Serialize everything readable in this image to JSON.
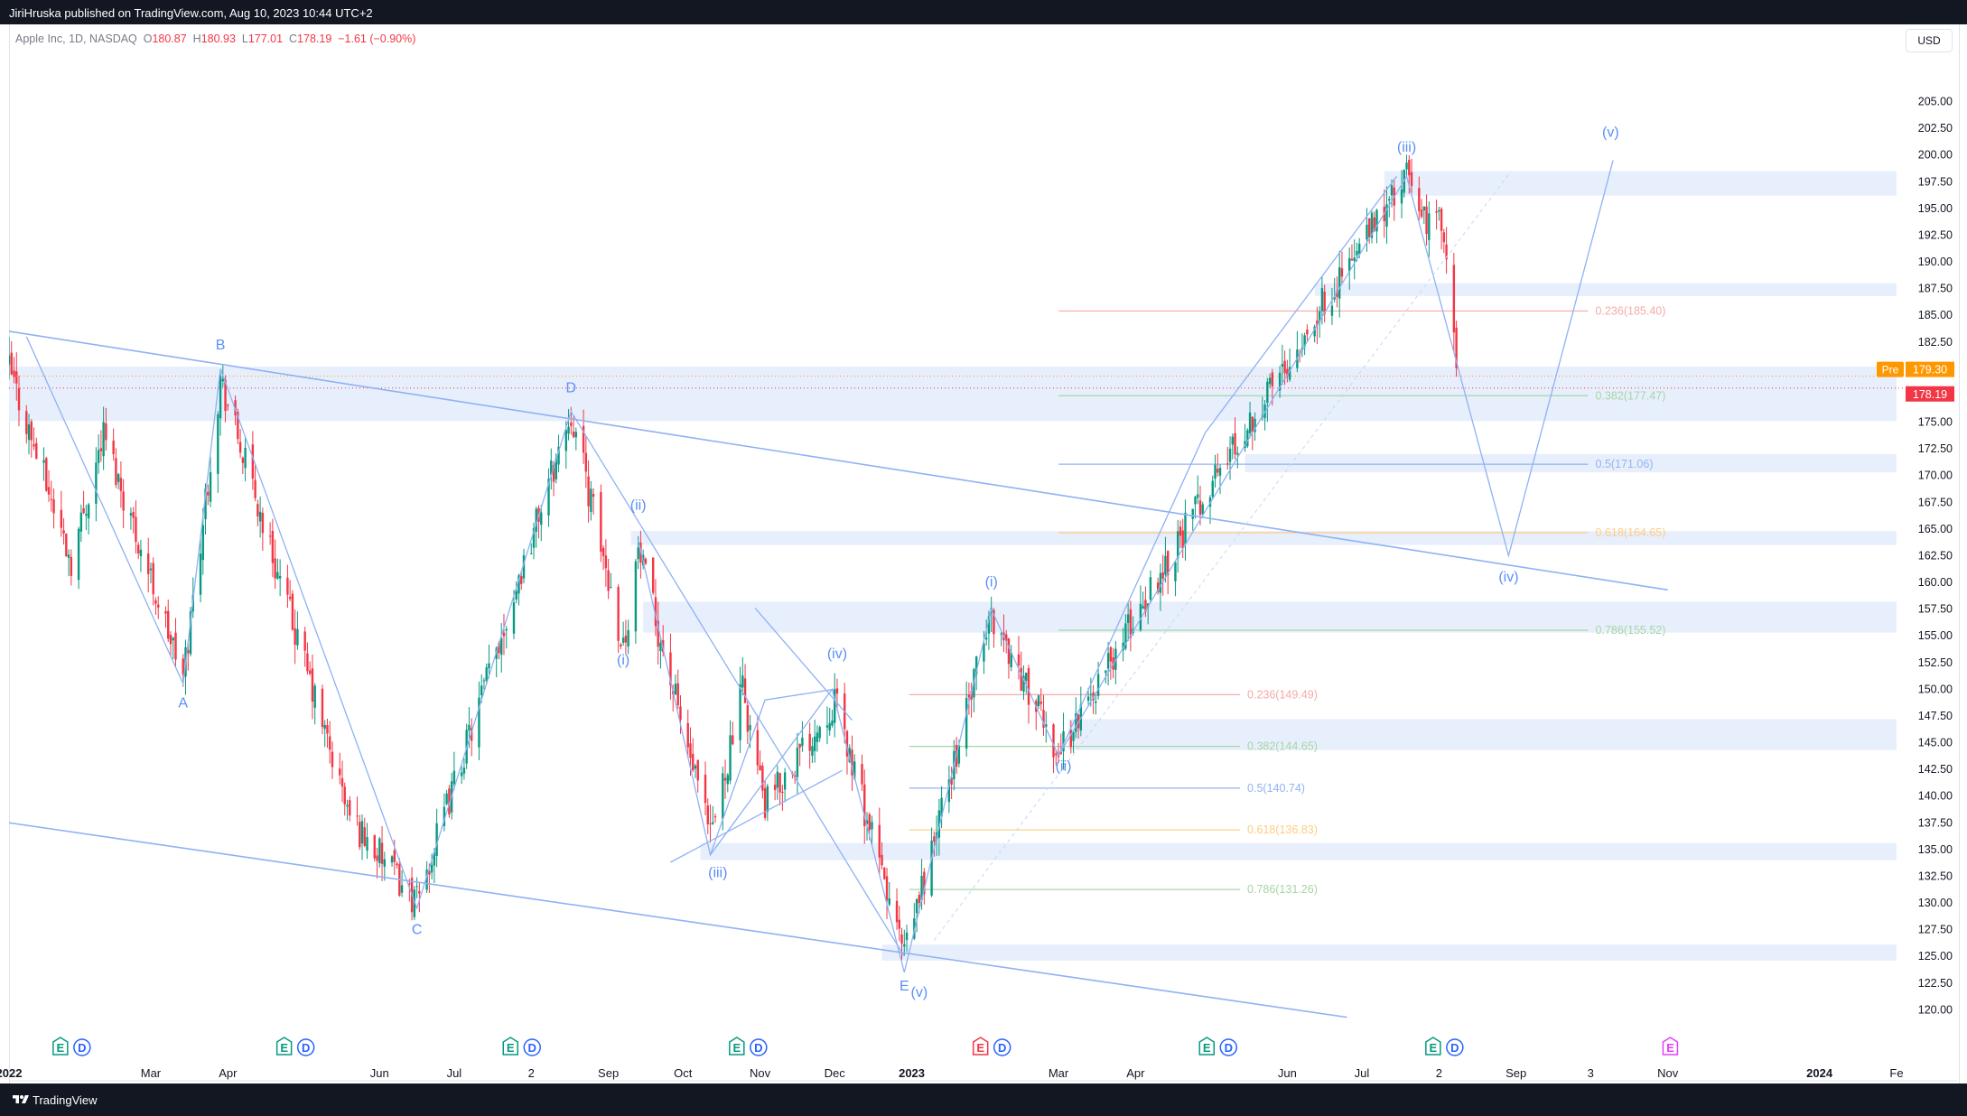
{
  "header": {
    "published": "JiriHruska published on TradingView.com, Aug 10, 2023 10:44 UTC+2"
  },
  "legend": {
    "symbol": "Apple Inc, 1D, NASDAQ",
    "open_label": "O",
    "open": "180.87",
    "high_label": "H",
    "high": "180.93",
    "low_label": "L",
    "low": "177.01",
    "close_label": "C",
    "close": "178.19",
    "change": "−1.61 (−0.90%)"
  },
  "currency_button": "USD",
  "footer": {
    "brand": "TradingView"
  },
  "colors": {
    "up": "#089981",
    "down": "#f23645",
    "wave": "#5b8ff9",
    "zone": "#e8effc",
    "pre_badge": "#ff9800",
    "last_badge": "#f23645"
  },
  "chart_data": {
    "type": "candlestick",
    "y_axis": {
      "range": [
        118,
        208
      ],
      "ticks": [
        "205.00",
        "202.50",
        "200.00",
        "197.50",
        "195.00",
        "192.50",
        "190.00",
        "187.50",
        "185.00",
        "182.50",
        "180.00",
        "177.50",
        "175.00",
        "172.50",
        "170.00",
        "167.50",
        "165.00",
        "162.50",
        "160.00",
        "157.50",
        "155.00",
        "152.50",
        "150.00",
        "147.50",
        "145.00",
        "142.50",
        "140.00",
        "137.50",
        "135.00",
        "132.50",
        "130.00",
        "127.50",
        "125.00",
        "122.50",
        "120.00"
      ]
    },
    "x_axis": {
      "range": [
        "2022-01-03",
        "2024-02-01"
      ],
      "ticks": [
        {
          "date": "2022-01-03",
          "label": "2022",
          "bold": true
        },
        {
          "date": "2022-03-01",
          "label": "Mar"
        },
        {
          "date": "2022-04-01",
          "label": "Apr"
        },
        {
          "date": "2022-06-01",
          "label": "Jun"
        },
        {
          "date": "2022-07-01",
          "label": "Jul"
        },
        {
          "date": "2022-08-01",
          "label": "2"
        },
        {
          "date": "2022-09-01",
          "label": "Sep"
        },
        {
          "date": "2022-10-01",
          "label": "Oct"
        },
        {
          "date": "2022-11-01",
          "label": "Nov"
        },
        {
          "date": "2022-12-01",
          "label": "Dec"
        },
        {
          "date": "2023-01-01",
          "label": "2023",
          "bold": true
        },
        {
          "date": "2023-03-01",
          "label": "Mar"
        },
        {
          "date": "2023-04-01",
          "label": "Apr"
        },
        {
          "date": "2023-06-01",
          "label": "Jun"
        },
        {
          "date": "2023-07-01",
          "label": "Jul"
        },
        {
          "date": "2023-08-01",
          "label": "2"
        },
        {
          "date": "2023-09-01",
          "label": "Sep"
        },
        {
          "date": "2023-10-01",
          "label": "3"
        },
        {
          "date": "2023-11-01",
          "label": "Nov"
        },
        {
          "date": "2024-01-01",
          "label": "2024",
          "bold": true
        },
        {
          "date": "2024-02-01",
          "label": "Fe"
        }
      ]
    },
    "price_badges": [
      {
        "label": "Pre",
        "value": "179.30",
        "price": 179.3,
        "color": "#ff9800"
      },
      {
        "value": "178.19",
        "price": 178.19,
        "color": "#f23645"
      }
    ],
    "price_path": [
      [
        "2022-01-03",
        180
      ],
      [
        "2022-01-28",
        162
      ],
      [
        "2022-02-10",
        174
      ],
      [
        "2022-03-14",
        151
      ],
      [
        "2022-03-29",
        179
      ],
      [
        "2022-05-20",
        138
      ],
      [
        "2022-06-16",
        130
      ],
      [
        "2022-08-17",
        176
      ],
      [
        "2022-09-07",
        154
      ],
      [
        "2022-09-13",
        163
      ],
      [
        "2022-10-12",
        136
      ],
      [
        "2022-10-25",
        150
      ],
      [
        "2022-11-03",
        139
      ],
      [
        "2022-12-01",
        149
      ],
      [
        "2022-12-29",
        125
      ],
      [
        "2023-02-02",
        157
      ],
      [
        "2023-03-01",
        144
      ],
      [
        "2023-04-28",
        168
      ],
      [
        "2023-06-15",
        186
      ],
      [
        "2023-07-19",
        198
      ],
      [
        "2023-07-28",
        193
      ],
      [
        "2023-08-01",
        196
      ],
      [
        "2023-08-09",
        178
      ]
    ],
    "zones": [
      {
        "from": "2023-07-10",
        "to": "2024-02-01",
        "low": 196.2,
        "high": 198.5
      },
      {
        "from": "2023-06-12",
        "to": "2024-02-01",
        "low": 186.8,
        "high": 188.0
      },
      {
        "from": "2022-01-03",
        "to": "2024-02-01",
        "low": 175.1,
        "high": 180.2
      },
      {
        "from": "2023-05-15",
        "to": "2024-02-01",
        "low": 170.3,
        "high": 172.0
      },
      {
        "from": "2022-09-10",
        "to": "2024-02-01",
        "low": 163.5,
        "high": 164.8
      },
      {
        "from": "2022-09-15",
        "to": "2024-02-01",
        "low": 155.3,
        "high": 158.2
      },
      {
        "from": "2023-03-05",
        "to": "2024-02-01",
        "low": 144.3,
        "high": 147.2
      },
      {
        "from": "2022-10-08",
        "to": "2024-02-01",
        "low": 134.0,
        "high": 135.6
      },
      {
        "from": "2022-12-20",
        "to": "2024-02-01",
        "low": 124.6,
        "high": 126.1
      }
    ],
    "fib_levels": [
      {
        "label": "0.236(185.40)",
        "price": 185.4,
        "from": "2023-03-01",
        "to": "2023-09-30",
        "color": "#f7a9a9"
      },
      {
        "label": "0.382(177.47)",
        "price": 177.47,
        "from": "2023-03-01",
        "to": "2023-09-30",
        "color": "#a5d6a7"
      },
      {
        "label": "0.5(171.06)",
        "price": 171.06,
        "from": "2023-03-01",
        "to": "2023-09-30",
        "color": "#90b4f0"
      },
      {
        "label": "0.618(164.65)",
        "price": 164.65,
        "from": "2023-03-01",
        "to": "2023-09-30",
        "color": "#ffcc80"
      },
      {
        "label": "0.786(155.52)",
        "price": 155.52,
        "from": "2023-03-01",
        "to": "2023-09-30",
        "color": "#a5d6a7"
      },
      {
        "label": "0.236(149.49)",
        "price": 149.49,
        "from": "2022-12-31",
        "to": "2023-05-13",
        "color": "#f7a9a9"
      },
      {
        "label": "0.382(144.65)",
        "price": 144.65,
        "from": "2022-12-31",
        "to": "2023-05-13",
        "color": "#a5d6a7"
      },
      {
        "label": "0.5(140.74)",
        "price": 140.74,
        "from": "2022-12-31",
        "to": "2023-05-13",
        "color": "#90b4f0"
      },
      {
        "label": "0.618(136.83)",
        "price": 136.83,
        "from": "2022-12-31",
        "to": "2023-05-13",
        "color": "#ffcc80"
      },
      {
        "label": "0.786(131.26)",
        "price": 131.26,
        "from": "2022-12-31",
        "to": "2023-05-13",
        "color": "#a5d6a7"
      }
    ],
    "channel_lines": [
      [
        [
          "2022-01-03",
          183.5
        ],
        [
          "2023-11-01",
          159.3
        ]
      ],
      [
        [
          "2022-01-03",
          137.5
        ],
        [
          "2023-06-25",
          119.3
        ]
      ]
    ],
    "wave_paths": [
      [
        [
          "2022-01-10",
          183
        ],
        [
          "2022-03-14",
          150.5
        ],
        [
          "2022-03-29",
          180
        ],
        [
          "2022-06-16",
          129.5
        ],
        [
          "2022-08-17",
          176
        ],
        [
          "2022-12-29",
          125
        ]
      ],
      [
        [
          "2022-10-12",
          134.5
        ],
        [
          "2022-11-03",
          149
        ],
        [
          "2022-12-01",
          150
        ]
      ],
      [
        [
          "2022-09-13",
          164
        ],
        [
          "2022-10-12",
          134.5
        ],
        [
          "2022-11-30",
          150
        ],
        [
          "2022-12-29",
          123.5
        ],
        [
          "2023-02-02",
          157.5
        ],
        [
          "2023-03-01",
          143.8
        ],
        [
          "2023-07-19",
          198
        ],
        [
          "2023-08-29",
          162.5
        ],
        [
          "2023-10-10",
          199.5
        ]
      ],
      [
        [
          "2022-10-30",
          157.6
        ],
        [
          "2022-12-08",
          147.1
        ]
      ],
      [
        [
          "2022-09-26",
          133.8
        ],
        [
          "2022-12-04",
          142.4
        ]
      ],
      [
        [
          "2023-03-01",
          143.8
        ],
        [
          "2023-04-29",
          174
        ],
        [
          "2023-07-15",
          198
        ]
      ],
      [
        [
          "2023-01-10",
          126.5
        ],
        [
          "2023-08-30",
          198.5
        ]
      ]
    ],
    "wave_labels": [
      {
        "text": "B",
        "date": "2022-03-29",
        "price": 181.8
      },
      {
        "text": "A",
        "date": "2022-03-14",
        "price": 148.3
      },
      {
        "text": "D",
        "date": "2022-08-17",
        "price": 177.8
      },
      {
        "text": "C",
        "date": "2022-06-16",
        "price": 127.1
      },
      {
        "text": "(ii)",
        "date": "2022-09-13",
        "price": 166.8
      },
      {
        "text": "(i)",
        "date": "2022-09-07",
        "price": 152.3
      },
      {
        "text": "(iv)",
        "date": "2022-12-02",
        "price": 152.9
      },
      {
        "text": "(iii)",
        "date": "2022-10-15",
        "price": 132.4
      },
      {
        "text": "E",
        "date": "2022-12-29",
        "price": 121.8
      },
      {
        "text": "(v)",
        "date": "2023-01-04",
        "price": 121.2
      },
      {
        "text": "(i)",
        "date": "2023-02-02",
        "price": 159.6
      },
      {
        "text": "(ii)",
        "date": "2023-03-03",
        "price": 142.4
      },
      {
        "text": "(iii)",
        "date": "2023-07-19",
        "price": 200.3
      },
      {
        "text": "(iv)",
        "date": "2023-08-29",
        "price": 160.1
      },
      {
        "text": "(v)",
        "date": "2023-10-09",
        "price": 201.7
      }
    ],
    "event_markers": [
      {
        "date": "2022-01-28",
        "icons": [
          "E",
          "D"
        ],
        "color": "#089981"
      },
      {
        "date": "2022-04-28",
        "icons": [
          "E",
          "D"
        ],
        "color": "#089981"
      },
      {
        "date": "2022-07-28",
        "icons": [
          "E",
          "D"
        ],
        "color": "#089981"
      },
      {
        "date": "2022-10-27",
        "icons": [
          "E",
          "D"
        ],
        "color": "#089981"
      },
      {
        "date": "2023-02-02",
        "icons": [
          "E",
          "D"
        ],
        "color": "#f23645"
      },
      {
        "date": "2023-05-04",
        "icons": [
          "E",
          "D"
        ],
        "color": "#089981"
      },
      {
        "date": "2023-08-03",
        "icons": [
          "E",
          "D"
        ],
        "color": "#089981"
      },
      {
        "date": "2023-11-02",
        "icons": [
          "E"
        ],
        "color": "#e040fb"
      }
    ]
  }
}
